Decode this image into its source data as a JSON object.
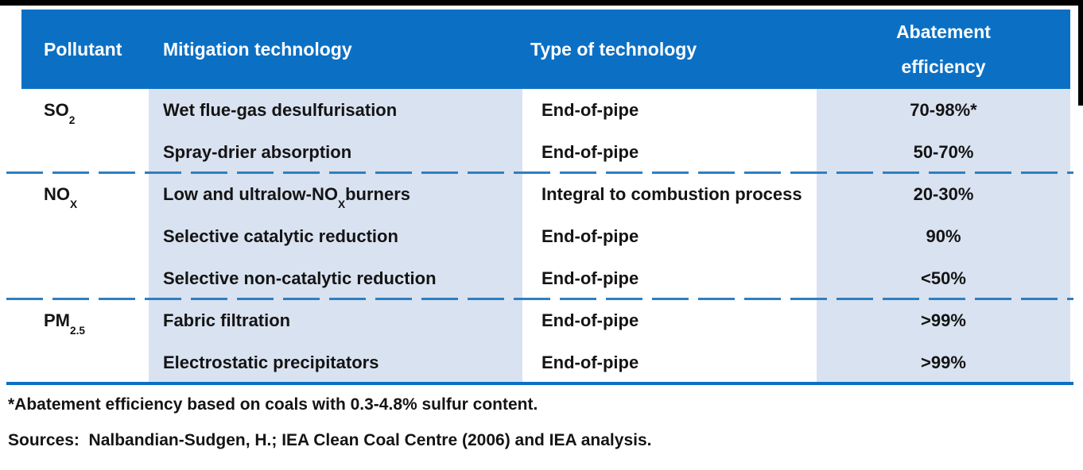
{
  "colors": {
    "header_bg": "#0B70C4",
    "shaded_column_bg": "#D9E2F0",
    "group_separator_blue": "#2E7FC2",
    "bottom_rule_blue": "#0B70C4",
    "header_text": "#FFFFFF",
    "body_text": "#141414",
    "frame_black": "#000000"
  },
  "table": {
    "columns": [
      {
        "label": "Pollutant"
      },
      {
        "label": "Mitigation technology"
      },
      {
        "label": "Type of technology"
      },
      {
        "label": "Abatement efficiency",
        "lines": [
          "Abatement",
          "efficiency"
        ]
      }
    ],
    "groups": [
      {
        "pollutant": {
          "base": "SO",
          "sub": "2"
        },
        "rows": [
          {
            "technology": {
              "pre": "Wet flue-gas desulfurisation",
              "sub": "",
              "post": ""
            },
            "type": "End-of-pipe",
            "efficiency": "70-98%*"
          },
          {
            "technology": {
              "pre": "Spray-drier absorption",
              "sub": "",
              "post": ""
            },
            "type": "End-of-pipe",
            "efficiency": "50-70%"
          }
        ]
      },
      {
        "pollutant": {
          "base": "NO",
          "sub": "X"
        },
        "rows": [
          {
            "technology": {
              "pre": "Low and ultralow-NO",
              "sub": "X",
              "post": " burners"
            },
            "type": "Integral to combustion process",
            "efficiency": "20-30%"
          },
          {
            "technology": {
              "pre": "Selective catalytic reduction",
              "sub": "",
              "post": ""
            },
            "type": "End-of-pipe",
            "efficiency": "90%"
          },
          {
            "technology": {
              "pre": "Selective non-catalytic reduction",
              "sub": "",
              "post": ""
            },
            "type": "End-of-pipe",
            "efficiency": "<50%"
          }
        ]
      },
      {
        "pollutant": {
          "base": "PM",
          "sub": "2.5"
        },
        "rows": [
          {
            "technology": {
              "pre": "Fabric filtration",
              "sub": "",
              "post": ""
            },
            "type": "End-of-pipe",
            "efficiency": ">99%"
          },
          {
            "technology": {
              "pre": "Electrostatic precipitators",
              "sub": "",
              "post": ""
            },
            "type": "End-of-pipe",
            "efficiency": ">99%"
          }
        ]
      }
    ]
  },
  "footnotes": {
    "asterisk_note": "*Abatement efficiency based on coals with 0.3-4.8% sulfur content.",
    "sources": "Sources:  Nalbandian-Sudgen, H.; IEA Clean Coal Centre (2006) and IEA analysis."
  },
  "chart_data": {
    "type": "table",
    "title": "",
    "columns": [
      "Pollutant",
      "Mitigation technology",
      "Type of technology",
      "Abatement efficiency"
    ],
    "rows": [
      [
        "SO2",
        "Wet flue-gas desulfurisation",
        "End-of-pipe",
        "70-98%*"
      ],
      [
        "SO2",
        "Spray-drier absorption",
        "End-of-pipe",
        "50-70%"
      ],
      [
        "NOX",
        "Low and ultralow-NOX burners",
        "Integral to combustion process",
        "20-30%"
      ],
      [
        "NOX",
        "Selective catalytic reduction",
        "End-of-pipe",
        "90%"
      ],
      [
        "NOX",
        "Selective non-catalytic reduction",
        "End-of-pipe",
        "<50%"
      ],
      [
        "PM2.5",
        "Fabric filtration",
        "End-of-pipe",
        ">99%"
      ],
      [
        "PM2.5",
        "Electrostatic precipitators",
        "End-of-pipe",
        ">99%"
      ]
    ],
    "footnote": "*Abatement efficiency based on coals with 0.3-4.8% sulfur content.",
    "sources": "Sources: Nalbandian-Sudgen, H.; IEA Clean Coal Centre (2006) and IEA analysis."
  }
}
